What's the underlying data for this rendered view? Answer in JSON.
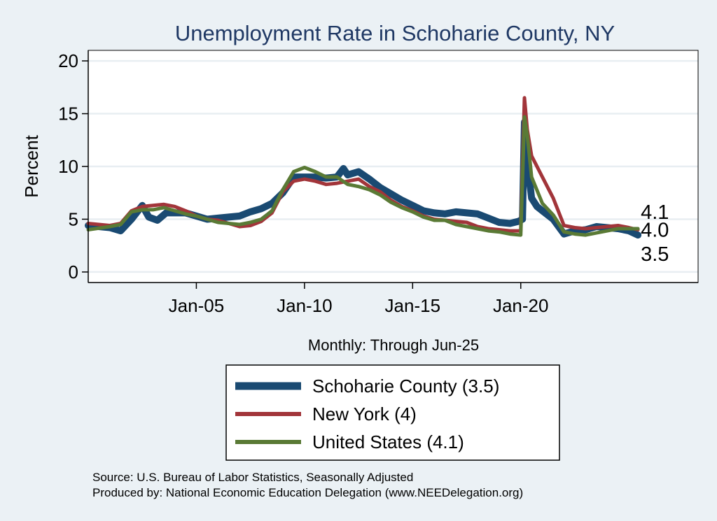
{
  "chart_data": {
    "type": "line",
    "title": "Unemployment Rate in Schoharie  County, NY",
    "ylabel": "Percent",
    "xlabel": "Monthly: Through Jun-25",
    "x_start_year": 2000,
    "x_end_year": 2025.42,
    "xlim": [
      2000,
      2028.2
    ],
    "ylim": [
      -1,
      21
    ],
    "yticks": [
      0,
      5,
      10,
      15,
      20
    ],
    "xticks": [
      {
        "year": 2005,
        "label": "Jan-05"
      },
      {
        "year": 2010,
        "label": "Jan-10"
      },
      {
        "year": 2015,
        "label": "Jan-15"
      },
      {
        "year": 2020,
        "label": "Jan-20"
      }
    ],
    "grid": true,
    "legend_position": "bottom-center",
    "series": [
      {
        "name": "Schoharie  County (3.5)",
        "color": "#1a4a72",
        "width": 10,
        "points": [
          [
            2000,
            4.4
          ],
          [
            2000.5,
            4.3
          ],
          [
            2001,
            4.2
          ],
          [
            2001.5,
            3.9
          ],
          [
            2002,
            5.0
          ],
          [
            2002.5,
            6.3
          ],
          [
            2002.8,
            5.2
          ],
          [
            2003.2,
            4.9
          ],
          [
            2003.6,
            5.6
          ],
          [
            2004,
            5.6
          ],
          [
            2004.5,
            5.6
          ],
          [
            2005,
            5.3
          ],
          [
            2005.5,
            5.0
          ],
          [
            2006,
            5.1
          ],
          [
            2006.5,
            5.2
          ],
          [
            2007,
            5.3
          ],
          [
            2007.5,
            5.7
          ],
          [
            2008,
            6.0
          ],
          [
            2008.5,
            6.5
          ],
          [
            2009,
            7.5
          ],
          [
            2009.5,
            9.0
          ],
          [
            2010,
            9.0
          ],
          [
            2010.5,
            9.0
          ],
          [
            2011,
            8.9
          ],
          [
            2011.5,
            9.0
          ],
          [
            2011.8,
            9.8
          ],
          [
            2012,
            9.2
          ],
          [
            2012.5,
            9.5
          ],
          [
            2013,
            8.8
          ],
          [
            2013.5,
            8.0
          ],
          [
            2014,
            7.4
          ],
          [
            2014.5,
            6.8
          ],
          [
            2015,
            6.3
          ],
          [
            2015.5,
            5.8
          ],
          [
            2016,
            5.6
          ],
          [
            2016.5,
            5.5
          ],
          [
            2017,
            5.7
          ],
          [
            2017.5,
            5.6
          ],
          [
            2018,
            5.5
          ],
          [
            2018.5,
            5.1
          ],
          [
            2019,
            4.7
          ],
          [
            2019.5,
            4.6
          ],
          [
            2019.9,
            4.8
          ],
          [
            2020.08,
            5.0
          ],
          [
            2020.17,
            14.2
          ],
          [
            2020.33,
            10.0
          ],
          [
            2020.5,
            7.0
          ],
          [
            2020.75,
            6.2
          ],
          [
            2021,
            5.8
          ],
          [
            2021.5,
            5.0
          ],
          [
            2022,
            3.6
          ],
          [
            2022.5,
            3.9
          ],
          [
            2023,
            4.0
          ],
          [
            2023.5,
            4.3
          ],
          [
            2024,
            4.2
          ],
          [
            2024.5,
            4.1
          ],
          [
            2025,
            3.9
          ],
          [
            2025.42,
            3.5
          ]
        ]
      },
      {
        "name": "New York (4)",
        "color": "#a2353a",
        "width": 5,
        "points": [
          [
            2000,
            4.6
          ],
          [
            2001,
            4.4
          ],
          [
            2001.5,
            4.6
          ],
          [
            2002,
            5.8
          ],
          [
            2002.5,
            6.2
          ],
          [
            2003,
            6.3
          ],
          [
            2003.5,
            6.4
          ],
          [
            2004,
            6.2
          ],
          [
            2004.5,
            5.8
          ],
          [
            2005,
            5.3
          ],
          [
            2005.5,
            5.0
          ],
          [
            2006,
            4.9
          ],
          [
            2006.5,
            4.6
          ],
          [
            2007,
            4.3
          ],
          [
            2007.5,
            4.4
          ],
          [
            2008,
            4.8
          ],
          [
            2008.5,
            5.6
          ],
          [
            2009,
            7.6
          ],
          [
            2009.5,
            8.6
          ],
          [
            2010,
            8.8
          ],
          [
            2010.5,
            8.6
          ],
          [
            2011,
            8.3
          ],
          [
            2011.5,
            8.4
          ],
          [
            2012,
            8.6
          ],
          [
            2012.5,
            8.8
          ],
          [
            2013,
            8.1
          ],
          [
            2013.5,
            7.6
          ],
          [
            2014,
            6.8
          ],
          [
            2014.5,
            6.2
          ],
          [
            2015,
            5.8
          ],
          [
            2015.5,
            5.3
          ],
          [
            2016,
            5.0
          ],
          [
            2016.5,
            4.9
          ],
          [
            2017,
            4.8
          ],
          [
            2017.5,
            4.7
          ],
          [
            2018,
            4.3
          ],
          [
            2018.5,
            4.1
          ],
          [
            2019,
            4.0
          ],
          [
            2019.5,
            3.9
          ],
          [
            2020,
            3.9
          ],
          [
            2020.17,
            16.5
          ],
          [
            2020.3,
            13.5
          ],
          [
            2020.5,
            11.0
          ],
          [
            2021,
            9.0
          ],
          [
            2021.5,
            7.0
          ],
          [
            2022,
            4.4
          ],
          [
            2022.5,
            4.2
          ],
          [
            2023,
            4.1
          ],
          [
            2023.5,
            4.2
          ],
          [
            2024,
            4.3
          ],
          [
            2024.5,
            4.4
          ],
          [
            2025,
            4.2
          ],
          [
            2025.42,
            4.0
          ]
        ]
      },
      {
        "name": "United States (4.1)",
        "color": "#5a7a35",
        "width": 5,
        "points": [
          [
            2000,
            4.0
          ],
          [
            2001,
            4.3
          ],
          [
            2001.5,
            4.5
          ],
          [
            2002,
            5.7
          ],
          [
            2002.5,
            5.9
          ],
          [
            2003,
            5.9
          ],
          [
            2003.5,
            6.1
          ],
          [
            2004,
            5.8
          ],
          [
            2004.5,
            5.5
          ],
          [
            2005,
            5.3
          ],
          [
            2005.5,
            5.0
          ],
          [
            2006,
            4.7
          ],
          [
            2006.5,
            4.6
          ],
          [
            2007,
            4.5
          ],
          [
            2007.5,
            4.7
          ],
          [
            2008,
            5.0
          ],
          [
            2008.5,
            5.8
          ],
          [
            2009,
            7.8
          ],
          [
            2009.5,
            9.5
          ],
          [
            2010,
            9.9
          ],
          [
            2010.5,
            9.5
          ],
          [
            2011,
            9.0
          ],
          [
            2011.5,
            9.0
          ],
          [
            2012,
            8.3
          ],
          [
            2012.5,
            8.1
          ],
          [
            2013,
            7.8
          ],
          [
            2013.5,
            7.3
          ],
          [
            2014,
            6.6
          ],
          [
            2014.5,
            6.1
          ],
          [
            2015,
            5.7
          ],
          [
            2015.5,
            5.2
          ],
          [
            2016,
            4.9
          ],
          [
            2016.5,
            4.9
          ],
          [
            2017,
            4.5
          ],
          [
            2017.5,
            4.3
          ],
          [
            2018,
            4.1
          ],
          [
            2018.5,
            3.9
          ],
          [
            2019,
            3.8
          ],
          [
            2019.5,
            3.6
          ],
          [
            2020,
            3.5
          ],
          [
            2020.17,
            14.7
          ],
          [
            2020.3,
            13.0
          ],
          [
            2020.5,
            9.0
          ],
          [
            2021,
            6.5
          ],
          [
            2021.5,
            5.4
          ],
          [
            2022,
            3.8
          ],
          [
            2022.5,
            3.6
          ],
          [
            2023,
            3.5
          ],
          [
            2023.5,
            3.7
          ],
          [
            2024,
            3.9
          ],
          [
            2024.5,
            4.1
          ],
          [
            2025,
            4.1
          ],
          [
            2025.42,
            4.1
          ]
        ]
      }
    ],
    "end_labels": [
      {
        "text": "4.1",
        "value": 4.1
      },
      {
        "text": "4.0",
        "value": 4.0
      },
      {
        "text": "3.5",
        "value": 3.5
      }
    ]
  },
  "source": {
    "line1": "Source: U.S. Bureau of Labor Statistics, Seasonally Adjusted",
    "line2": "Produced by: National Economic Education Delegation (www.NEEDelegation.org)"
  },
  "colors": {
    "background": "#ebf1f5",
    "plot_background": "#ffffff",
    "gridline": "#e8eef2",
    "title": "#1f3864"
  }
}
